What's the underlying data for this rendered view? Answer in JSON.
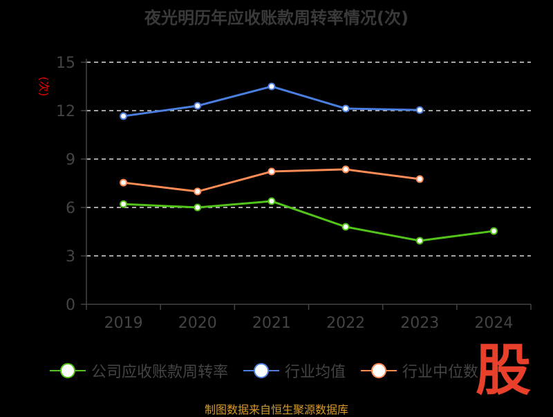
{
  "chart_data": {
    "type": "line",
    "title": "夜光明历年应收账款周转率情况(次)",
    "ylabel": "(次)",
    "xlabel": "",
    "categories": [
      "2019",
      "2020",
      "2021",
      "2022",
      "2023",
      "2024"
    ],
    "ylim": [
      0,
      15
    ],
    "yticks": [
      0,
      3,
      6,
      9,
      12,
      15
    ],
    "grid": true,
    "legend_position": "bottom",
    "series": [
      {
        "name": "公司应收账款周转率",
        "color": "#52c41a",
        "values": [
          6.21,
          6.0,
          6.39,
          4.8,
          3.94,
          4.54
        ]
      },
      {
        "name": "行业均值",
        "color": "#4a7fe0",
        "values": [
          11.66,
          12.3,
          13.5,
          12.13,
          12.04,
          null
        ]
      },
      {
        "name": "行业中位数",
        "color": "#ff8c55",
        "values": [
          7.54,
          6.99,
          8.23,
          8.36,
          7.76,
          null
        ]
      }
    ]
  },
  "source": "制图数据来自恒生聚源数据库",
  "logo_text": "股"
}
